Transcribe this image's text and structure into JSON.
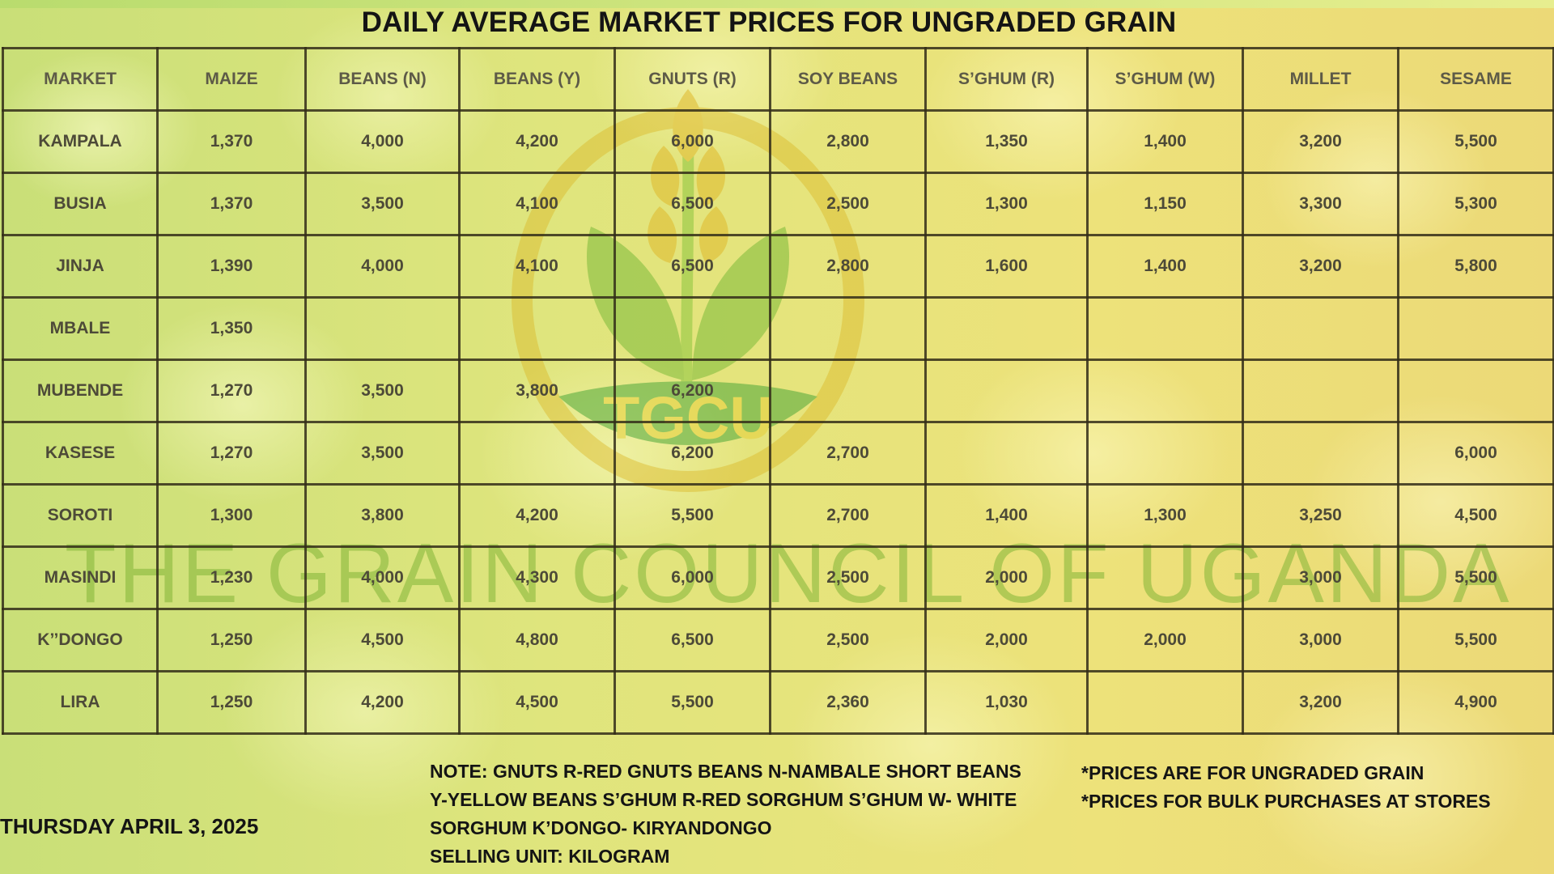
{
  "title": "DAILY AVERAGE MARKET PRICES FOR UNGRADED GRAIN",
  "logo_text": "TGCU",
  "watermark": "THE GRAIN COUNCIL OF UGANDA",
  "columns": [
    "MARKET",
    "MAIZE",
    "BEANS (N)",
    "BEANS (Y)",
    "GNUTS (R)",
    "SOY BEANS",
    "S’GHUM (R)",
    "S’GHUM (W)",
    "MILLET",
    "SESAME"
  ],
  "rows": [
    {
      "market": "KAMPALA",
      "values": [
        "1,370",
        "4,000",
        "4,200",
        "6,000",
        "2,800",
        "1,350",
        "1,400",
        "3,200",
        "5,500"
      ]
    },
    {
      "market": "BUSIA",
      "values": [
        "1,370",
        "3,500",
        "4,100",
        "6,500",
        "2,500",
        "1,300",
        "1,150",
        "3,300",
        "5,300"
      ]
    },
    {
      "market": "JINJA",
      "values": [
        "1,390",
        "4,000",
        "4,100",
        "6,500",
        "2,800",
        "1,600",
        "1,400",
        "3,200",
        "5,800"
      ]
    },
    {
      "market": "MBALE",
      "values": [
        "1,350",
        "",
        "",
        "",
        "",
        "",
        "",
        "",
        ""
      ]
    },
    {
      "market": "MUBENDE",
      "values": [
        "1,270",
        "3,500",
        "3,800",
        "6,200",
        "",
        "",
        "",
        "",
        ""
      ]
    },
    {
      "market": "KASESE",
      "values": [
        "1,270",
        "3,500",
        "",
        "6,200",
        "2,700",
        "",
        "",
        "",
        "6,000"
      ]
    },
    {
      "market": "SOROTI",
      "values": [
        "1,300",
        "3,800",
        "4,200",
        "5,500",
        "2,700",
        "1,400",
        "1,300",
        "3,250",
        "4,500"
      ]
    },
    {
      "market": "MASINDI",
      "values": [
        "1,230",
        "4,000",
        "4,300",
        "6,000",
        "2,500",
        "2,000",
        "",
        "3,000",
        "5,500"
      ]
    },
    {
      "market": "K’’DONGO",
      "values": [
        "1,250",
        "4,500",
        "4,800",
        "6,500",
        "2,500",
        "2,000",
        "2,000",
        "3,000",
        "5,500"
      ]
    },
    {
      "market": "LIRA",
      "values": [
        "1,250",
        "4,200",
        "4,500",
        "5,500",
        "2,360",
        "1,030",
        "",
        "3,200",
        "4,900"
      ]
    }
  ],
  "date": "THURSDAY APRIL 3, 2025",
  "note_lines": [
    "NOTE: GNUTS R-RED GNUTS  BEANS N-NAMBALE SHORT BEANS",
    "Y-YELLOW BEANS  S’GHUM R-RED SORGHUM  S’GHUM W- WHITE",
    "SORGHUM K’DONGO- KIRYANDONGO",
    "SELLING UNIT: KILOGRAM"
  ],
  "disclaimers": [
    "*PRICES ARE FOR UNGRADED GRAIN",
    "*PRICES FOR BULK PURCHASES AT STORES"
  ]
}
